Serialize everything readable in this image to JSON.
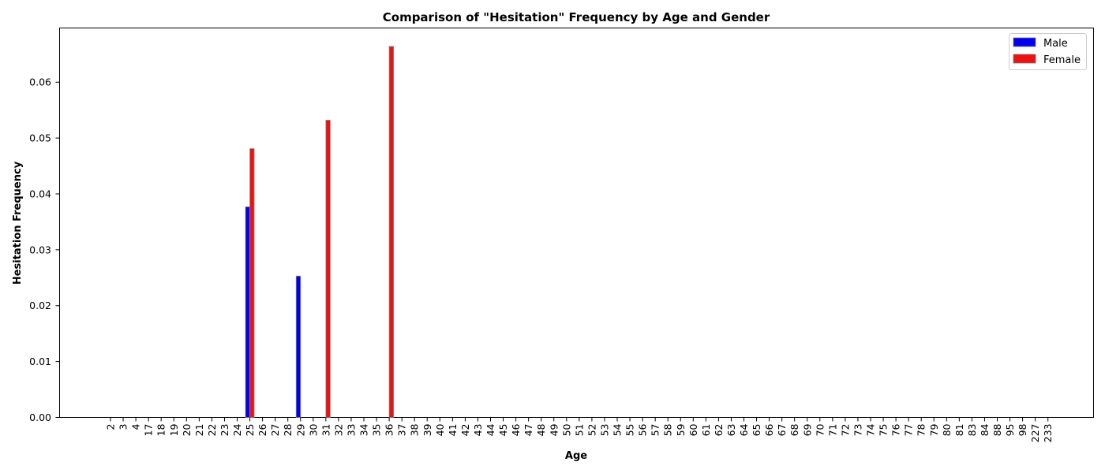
{
  "chart_data": {
    "type": "bar",
    "title": "Comparison of \"Hesitation\" Frequency by Age and Gender",
    "xlabel": "Age",
    "ylabel": "Hesitation Frequency",
    "categories": [
      "2",
      "3",
      "4",
      "17",
      "18",
      "19",
      "20",
      "21",
      "22",
      "23",
      "24",
      "25",
      "26",
      "27",
      "28",
      "29",
      "30",
      "31",
      "32",
      "33",
      "34",
      "35",
      "36",
      "37",
      "38",
      "39",
      "40",
      "41",
      "42",
      "43",
      "44",
      "45",
      "46",
      "47",
      "48",
      "49",
      "50",
      "51",
      "52",
      "53",
      "54",
      "55",
      "56",
      "57",
      "58",
      "59",
      "60",
      "61",
      "62",
      "63",
      "64",
      "65",
      "66",
      "67",
      "68",
      "69",
      "70",
      "71",
      "72",
      "73",
      "74",
      "75",
      "76",
      "77",
      "78",
      "79",
      "80",
      "81",
      "83",
      "84",
      "88",
      "95",
      "98",
      "227",
      "233"
    ],
    "series": [
      {
        "name": "Male",
        "color": "#0000ee",
        "values": [
          0,
          0,
          0,
          0,
          0,
          0,
          0,
          0,
          0,
          0,
          0,
          0.0377,
          0,
          0,
          0,
          0.0253,
          0,
          0,
          0,
          0,
          0,
          0,
          0,
          0,
          0,
          0,
          0,
          0,
          0,
          0,
          0,
          0,
          0,
          0,
          0,
          0,
          0,
          0,
          0,
          0,
          0,
          0,
          0,
          0,
          0,
          0,
          0,
          0,
          0,
          0,
          0,
          0,
          0,
          0,
          0,
          0,
          0,
          0,
          0,
          0,
          0,
          0,
          0,
          0,
          0,
          0,
          0,
          0,
          0,
          0,
          0,
          0,
          0,
          0,
          0
        ]
      },
      {
        "name": "Female",
        "color": "#ee1111",
        "values": [
          0,
          0,
          0,
          0,
          0,
          0,
          0,
          0,
          0,
          0,
          0,
          0.0481,
          0,
          0,
          0,
          0,
          0,
          0.0532,
          0,
          0,
          0,
          0,
          0.0664,
          0,
          0,
          0,
          0,
          0,
          0,
          0,
          0,
          0,
          0,
          0,
          0,
          0,
          0,
          0,
          0,
          0,
          0,
          0,
          0,
          0,
          0,
          0,
          0,
          0,
          0,
          0,
          0,
          0,
          0,
          0,
          0,
          0,
          0,
          0,
          0,
          0,
          0,
          0,
          0,
          0,
          0,
          0,
          0,
          0,
          0,
          0,
          0,
          0,
          0,
          0,
          0
        ]
      }
    ],
    "ylim": [
      0,
      0.0697
    ],
    "yticks": [
      "0.00",
      "0.01",
      "0.02",
      "0.03",
      "0.04",
      "0.05",
      "0.06"
    ],
    "ytick_values": [
      0,
      0.01,
      0.02,
      0.03,
      0.04,
      0.05,
      0.06
    ],
    "grid": false,
    "legend_position": "top-right"
  }
}
